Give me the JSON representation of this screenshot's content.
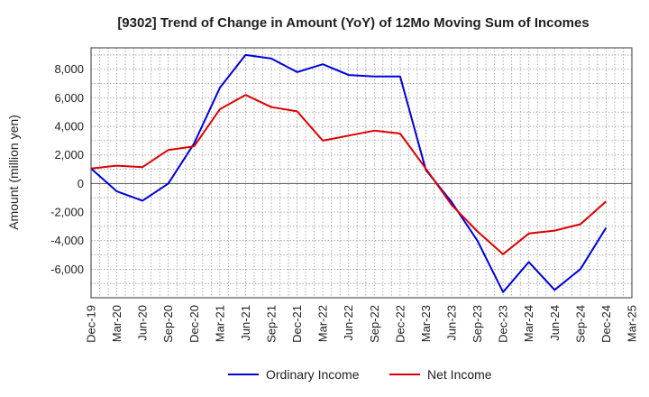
{
  "chart_data": {
    "type": "line",
    "title": "[9302]  Trend of Change in Amount (YoY) of 12Mo Moving Sum of Incomes",
    "ylabel": "Amount (million yen)",
    "xlabel": "",
    "ylim": [
      -8000,
      9500
    ],
    "yticks": [
      -6000,
      -4000,
      -2000,
      0,
      2000,
      4000,
      6000,
      8000
    ],
    "ytick_labels": [
      "-6,000",
      "-4,000",
      "-2,000",
      "0",
      "2,000",
      "4,000",
      "6,000",
      "8,000"
    ],
    "x": [
      "Dec-19",
      "Jan-20",
      "Feb-20",
      "Mar-20",
      "Apr-20",
      "May-20",
      "Jun-20",
      "Jul-20",
      "Aug-20",
      "Sep-20",
      "Oct-20",
      "Nov-20",
      "Dec-20",
      "Jan-21",
      "Feb-21",
      "Mar-21",
      "Apr-21",
      "May-21",
      "Jun-21",
      "Jul-21",
      "Aug-21",
      "Sep-21",
      "Oct-21",
      "Nov-21",
      "Dec-21",
      "Jan-22",
      "Feb-22",
      "Mar-22",
      "Apr-22",
      "May-22",
      "Jun-22",
      "Jul-22",
      "Aug-22",
      "Sep-22",
      "Oct-22",
      "Nov-22",
      "Dec-22",
      "Jan-23",
      "Feb-23",
      "Mar-23",
      "Apr-23",
      "May-23",
      "Jun-23",
      "Jul-23",
      "Aug-23",
      "Sep-23",
      "Oct-23",
      "Nov-23",
      "Dec-23",
      "Jan-24",
      "Feb-24",
      "Mar-24",
      "Apr-24",
      "May-24",
      "Jun-24",
      "Jul-24",
      "Aug-24",
      "Sep-24",
      "Oct-24",
      "Nov-24",
      "Dec-24",
      "Jan-25",
      "Feb-25",
      "Mar-25"
    ],
    "xtick_labels": [
      "Dec-19",
      "Mar-20",
      "Jun-20",
      "Sep-20",
      "Dec-20",
      "Mar-21",
      "Jun-21",
      "Sep-21",
      "Dec-21",
      "Mar-22",
      "Jun-22",
      "Sep-22",
      "Dec-22",
      "Mar-23",
      "Jun-23",
      "Sep-23",
      "Dec-23",
      "Mar-24",
      "Jun-24",
      "Sep-24",
      "Dec-24",
      "Mar-25"
    ],
    "grid": true,
    "legend_position": "bottom-center",
    "series": [
      {
        "name": "Ordinary Income",
        "color": "#0000dd",
        "points": [
          [
            "Dec-19",
            1050
          ],
          [
            "Mar-20",
            -550
          ],
          [
            "Jun-20",
            -1200
          ],
          [
            "Sep-20",
            0
          ],
          [
            "Dec-20",
            2800
          ],
          [
            "Mar-21",
            6700
          ],
          [
            "Jun-21",
            9000
          ],
          [
            "Sep-21",
            8750
          ],
          [
            "Dec-21",
            7800
          ],
          [
            "Mar-22",
            8350
          ],
          [
            "Jun-22",
            7600
          ],
          [
            "Sep-22",
            7500
          ],
          [
            "Dec-22",
            7500
          ],
          [
            "Mar-23",
            950
          ],
          [
            "Jun-23",
            -1300
          ],
          [
            "Sep-23",
            -4000
          ],
          [
            "Dec-23",
            -7600
          ],
          [
            "Mar-24",
            -5500
          ],
          [
            "Jun-24",
            -7450
          ],
          [
            "Sep-24",
            -6000
          ],
          [
            "Dec-24",
            -3100
          ]
        ]
      },
      {
        "name": "Net Income",
        "color": "#dd0000",
        "points": [
          [
            "Dec-19",
            1050
          ],
          [
            "Mar-20",
            1250
          ],
          [
            "Jun-20",
            1150
          ],
          [
            "Sep-20",
            2350
          ],
          [
            "Dec-20",
            2600
          ],
          [
            "Mar-21",
            5200
          ],
          [
            "Jun-21",
            6200
          ],
          [
            "Sep-21",
            5350
          ],
          [
            "Dec-21",
            5050
          ],
          [
            "Mar-22",
            3000
          ],
          [
            "Jun-22",
            3350
          ],
          [
            "Sep-22",
            3700
          ],
          [
            "Dec-22",
            3500
          ],
          [
            "Mar-23",
            1050
          ],
          [
            "Jun-23",
            -1500
          ],
          [
            "Sep-23",
            -3350
          ],
          [
            "Dec-23",
            -4950
          ],
          [
            "Mar-24",
            -3500
          ],
          [
            "Jun-24",
            -3300
          ],
          [
            "Sep-24",
            -2850
          ],
          [
            "Dec-24",
            -1250
          ]
        ]
      }
    ]
  }
}
